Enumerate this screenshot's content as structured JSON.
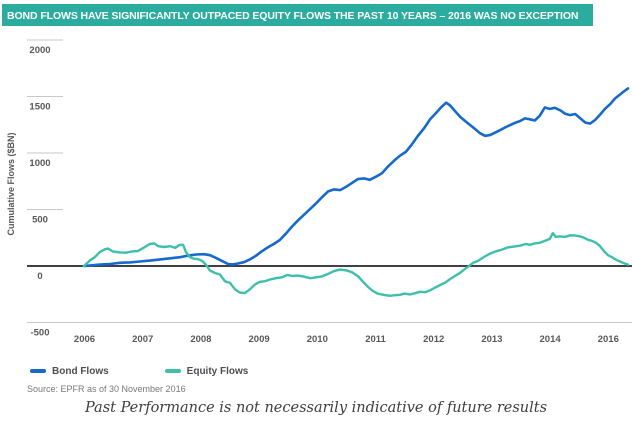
{
  "header": {
    "title": "BOND FLOWS HAVE SIGNIFICANTLY OUTPACED EQUITY FLOWS THE PAST 10 YEARS – 2016 WAS NO EXCEPTION"
  },
  "colors": {
    "title_bar": "#2BAC9F",
    "bond_blue": "#1669CD",
    "equity_teal": "#3CBFAC",
    "zero_line": "#414042",
    "gridline": "#C7C8CA",
    "tick_text": "#57585A",
    "source_text": "#77787B"
  },
  "legend": [
    {
      "label": "Bond Flows",
      "color": "#1669CD"
    },
    {
      "label": "Equity Flows",
      "color": "#3CBFAC"
    }
  ],
  "footer": {
    "source": "Source: EPFR as of 30 November 2016",
    "disclaimer": "Past Performance is not necessarily indicative of future results"
  },
  "chart_data": {
    "type": "line",
    "title": "BOND FLOWS HAVE SIGNIFICANTLY OUTPACED EQUITY FLOWS THE PAST 10 YEARS – 2016 WAS NO EXCEPTION",
    "xlabel": "",
    "ylabel": "Cumulative Flows ($BN)",
    "ylim": [
      -500,
      2000
    ],
    "xlim": [
      2006,
      2016.92
    ],
    "ytick_values": [
      2000,
      1500,
      1000,
      500,
      0,
      -500
    ],
    "xtick_labels": [
      "2006",
      "2007",
      "2008",
      "2009",
      "2010",
      "2011",
      "2012",
      "2013",
      "2014",
      "2016"
    ],
    "grid": "short left ticks for positive values; full-width dark line at 0; full-width light line at -500",
    "legend_position": "bottom-left",
    "series": [
      {
        "name": "Bond Flows",
        "color": "#1669CD",
        "width": 2.6,
        "points": [
          [
            2006.0,
            0
          ],
          [
            2006.16,
            6
          ],
          [
            2006.32,
            12
          ],
          [
            2006.52,
            18
          ],
          [
            2006.72,
            28
          ],
          [
            2006.92,
            32
          ],
          [
            2007.12,
            40
          ],
          [
            2007.32,
            48
          ],
          [
            2007.53,
            58
          ],
          [
            2007.73,
            68
          ],
          [
            2007.93,
            78
          ],
          [
            2008.09,
            92
          ],
          [
            2008.25,
            102
          ],
          [
            2008.41,
            104
          ],
          [
            2008.53,
            96
          ],
          [
            2008.65,
            72
          ],
          [
            2008.77,
            45
          ],
          [
            2008.89,
            18
          ],
          [
            2008.99,
            14
          ],
          [
            2009.09,
            22
          ],
          [
            2009.21,
            34
          ],
          [
            2009.33,
            58
          ],
          [
            2009.45,
            90
          ],
          [
            2009.57,
            130
          ],
          [
            2009.69,
            165
          ],
          [
            2009.81,
            195
          ],
          [
            2009.93,
            230
          ],
          [
            2010.06,
            290
          ],
          [
            2010.18,
            350
          ],
          [
            2010.3,
            405
          ],
          [
            2010.42,
            455
          ],
          [
            2010.54,
            505
          ],
          [
            2010.66,
            555
          ],
          [
            2010.78,
            610
          ],
          [
            2010.9,
            660
          ],
          [
            2011.02,
            678
          ],
          [
            2011.14,
            672
          ],
          [
            2011.26,
            700
          ],
          [
            2011.38,
            735
          ],
          [
            2011.5,
            770
          ],
          [
            2011.62,
            775
          ],
          [
            2011.74,
            763
          ],
          [
            2011.86,
            790
          ],
          [
            2011.98,
            820
          ],
          [
            2012.1,
            880
          ],
          [
            2012.22,
            930
          ],
          [
            2012.34,
            975
          ],
          [
            2012.46,
            1010
          ],
          [
            2012.58,
            1075
          ],
          [
            2012.7,
            1150
          ],
          [
            2012.83,
            1220
          ],
          [
            2012.95,
            1300
          ],
          [
            2013.07,
            1355
          ],
          [
            2013.17,
            1405
          ],
          [
            2013.27,
            1445
          ],
          [
            2013.35,
            1420
          ],
          [
            2013.45,
            1370
          ],
          [
            2013.55,
            1320
          ],
          [
            2013.65,
            1283
          ],
          [
            2013.75,
            1248
          ],
          [
            2013.85,
            1212
          ],
          [
            2013.95,
            1175
          ],
          [
            2014.05,
            1152
          ],
          [
            2014.15,
            1158
          ],
          [
            2014.25,
            1180
          ],
          [
            2014.35,
            1202
          ],
          [
            2014.45,
            1226
          ],
          [
            2014.55,
            1246
          ],
          [
            2014.65,
            1266
          ],
          [
            2014.75,
            1282
          ],
          [
            2014.85,
            1306
          ],
          [
            2014.95,
            1298
          ],
          [
            2015.05,
            1288
          ],
          [
            2015.15,
            1330
          ],
          [
            2015.25,
            1403
          ],
          [
            2015.35,
            1390
          ],
          [
            2015.45,
            1400
          ],
          [
            2015.56,
            1378
          ],
          [
            2015.66,
            1348
          ],
          [
            2015.76,
            1335
          ],
          [
            2015.86,
            1345
          ],
          [
            2015.96,
            1308
          ],
          [
            2016.06,
            1270
          ],
          [
            2016.16,
            1260
          ],
          [
            2016.26,
            1292
          ],
          [
            2016.36,
            1340
          ],
          [
            2016.46,
            1392
          ],
          [
            2016.56,
            1432
          ],
          [
            2016.66,
            1482
          ],
          [
            2016.76,
            1518
          ],
          [
            2016.84,
            1545
          ],
          [
            2016.92,
            1572
          ]
        ]
      },
      {
        "name": "Equity Flows",
        "color": "#3CBFAC",
        "width": 2.4,
        "points": [
          [
            2006.0,
            0
          ],
          [
            2006.12,
            50
          ],
          [
            2006.22,
            80
          ],
          [
            2006.32,
            125
          ],
          [
            2006.42,
            148
          ],
          [
            2006.48,
            155
          ],
          [
            2006.58,
            128
          ],
          [
            2006.72,
            120
          ],
          [
            2006.84,
            118
          ],
          [
            2006.96,
            128
          ],
          [
            2007.08,
            132
          ],
          [
            2007.2,
            162
          ],
          [
            2007.32,
            195
          ],
          [
            2007.41,
            200
          ],
          [
            2007.49,
            175
          ],
          [
            2007.61,
            168
          ],
          [
            2007.73,
            175
          ],
          [
            2007.83,
            160
          ],
          [
            2007.91,
            185
          ],
          [
            2007.99,
            188
          ],
          [
            2008.05,
            120
          ],
          [
            2008.13,
            78
          ],
          [
            2008.21,
            65
          ],
          [
            2008.29,
            60
          ],
          [
            2008.37,
            45
          ],
          [
            2008.45,
            10
          ],
          [
            2008.53,
            -40
          ],
          [
            2008.63,
            -62
          ],
          [
            2008.73,
            -75
          ],
          [
            2008.83,
            -135
          ],
          [
            2008.93,
            -150
          ],
          [
            2009.03,
            -205
          ],
          [
            2009.13,
            -235
          ],
          [
            2009.23,
            -240
          ],
          [
            2009.33,
            -205
          ],
          [
            2009.43,
            -165
          ],
          [
            2009.53,
            -140
          ],
          [
            2009.63,
            -135
          ],
          [
            2009.73,
            -120
          ],
          [
            2009.85,
            -108
          ],
          [
            2009.97,
            -100
          ],
          [
            2010.08,
            -80
          ],
          [
            2010.18,
            -88
          ],
          [
            2010.3,
            -85
          ],
          [
            2010.42,
            -95
          ],
          [
            2010.54,
            -108
          ],
          [
            2010.66,
            -100
          ],
          [
            2010.78,
            -92
          ],
          [
            2010.9,
            -70
          ],
          [
            2011.02,
            -45
          ],
          [
            2011.14,
            -32
          ],
          [
            2011.26,
            -38
          ],
          [
            2011.38,
            -55
          ],
          [
            2011.5,
            -90
          ],
          [
            2011.6,
            -140
          ],
          [
            2011.7,
            -185
          ],
          [
            2011.8,
            -222
          ],
          [
            2011.9,
            -245
          ],
          [
            2012.02,
            -256
          ],
          [
            2012.14,
            -264
          ],
          [
            2012.24,
            -258
          ],
          [
            2012.34,
            -255
          ],
          [
            2012.44,
            -244
          ],
          [
            2012.54,
            -252
          ],
          [
            2012.64,
            -242
          ],
          [
            2012.74,
            -228
          ],
          [
            2012.85,
            -232
          ],
          [
            2012.95,
            -215
          ],
          [
            2013.05,
            -190
          ],
          [
            2013.15,
            -168
          ],
          [
            2013.25,
            -148
          ],
          [
            2013.35,
            -115
          ],
          [
            2013.45,
            -88
          ],
          [
            2013.55,
            -60
          ],
          [
            2013.65,
            -25
          ],
          [
            2013.73,
            0
          ],
          [
            2013.81,
            28
          ],
          [
            2013.91,
            45
          ],
          [
            2014.03,
            80
          ],
          [
            2014.15,
            110
          ],
          [
            2014.27,
            130
          ],
          [
            2014.39,
            145
          ],
          [
            2014.51,
            165
          ],
          [
            2014.63,
            172
          ],
          [
            2014.75,
            180
          ],
          [
            2014.87,
            195
          ],
          [
            2014.95,
            188
          ],
          [
            2015.05,
            200
          ],
          [
            2015.15,
            205
          ],
          [
            2015.25,
            222
          ],
          [
            2015.35,
            240
          ],
          [
            2015.41,
            290
          ],
          [
            2015.47,
            258
          ],
          [
            2015.56,
            262
          ],
          [
            2015.66,
            258
          ],
          [
            2015.76,
            272
          ],
          [
            2015.86,
            270
          ],
          [
            2015.96,
            262
          ],
          [
            2016.04,
            250
          ],
          [
            2016.12,
            232
          ],
          [
            2016.2,
            222
          ],
          [
            2016.28,
            205
          ],
          [
            2016.36,
            175
          ],
          [
            2016.44,
            130
          ],
          [
            2016.52,
            95
          ],
          [
            2016.6,
            78
          ],
          [
            2016.68,
            55
          ],
          [
            2016.76,
            40
          ],
          [
            2016.84,
            25
          ],
          [
            2016.92,
            12
          ]
        ]
      }
    ]
  }
}
